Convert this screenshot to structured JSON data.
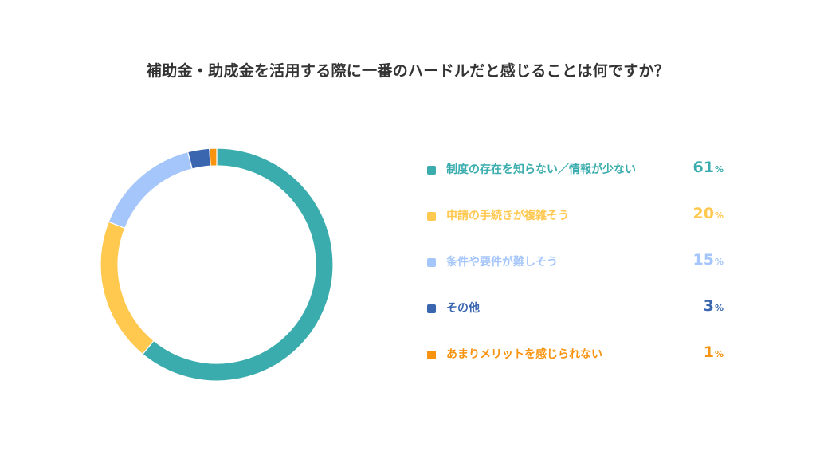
{
  "chart_data": {
    "type": "pie",
    "title": "補助金・助成金を活用する際に一番のハードルだと感じることは何ですか？",
    "unit": "%",
    "legend_position": "right",
    "series": [
      {
        "name": "制度の存在を知らない／情報が少ない",
        "value": 61,
        "color": "#3AACAD"
      },
      {
        "name": "申請の手続きが複雑そう",
        "value": 20,
        "color": "#FFC84F"
      },
      {
        "name": "条件や要件が難しそう",
        "value": 15,
        "color": "#A5C6FA"
      },
      {
        "name": "その他",
        "value": 3,
        "color": "#3A66B0"
      },
      {
        "name": "あまりメリットを感じられない",
        "value": 1,
        "color": "#F7930E"
      }
    ]
  }
}
